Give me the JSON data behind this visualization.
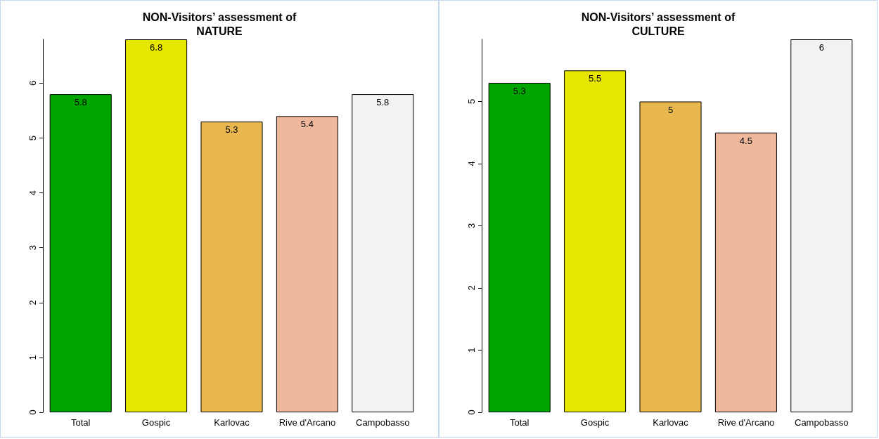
{
  "chart_data": [
    {
      "type": "bar",
      "title": "NON-Visitors’ assessment of\nNATURE",
      "categories": [
        "Total",
        "Gospic",
        "Karlovac",
        "Rive d'Arcano",
        "Campobasso"
      ],
      "values": [
        5.8,
        6.8,
        5.3,
        5.4,
        5.8
      ],
      "colors": [
        "#00a600",
        "#e6e600",
        "#e8b74d",
        "#efb89c",
        "#f2f2f2"
      ],
      "ylim": [
        0,
        6.8
      ],
      "yticks": [
        0,
        1,
        2,
        3,
        4,
        5,
        6
      ],
      "data_labels": true
    },
    {
      "type": "bar",
      "title": "NON-Visitors’ assessment of\nCULTURE",
      "categories": [
        "Total",
        "Gospic",
        "Karlovac",
        "Rive d'Arcano",
        "Campobasso"
      ],
      "values": [
        5.3,
        5.5,
        5,
        4.5,
        6
      ],
      "colors": [
        "#00a600",
        "#e6e600",
        "#e8b74d",
        "#efb89c",
        "#f2f2f2"
      ],
      "ylim": [
        0,
        6
      ],
      "yticks": [
        0,
        1,
        2,
        3,
        4,
        5
      ],
      "data_labels": true
    }
  ]
}
